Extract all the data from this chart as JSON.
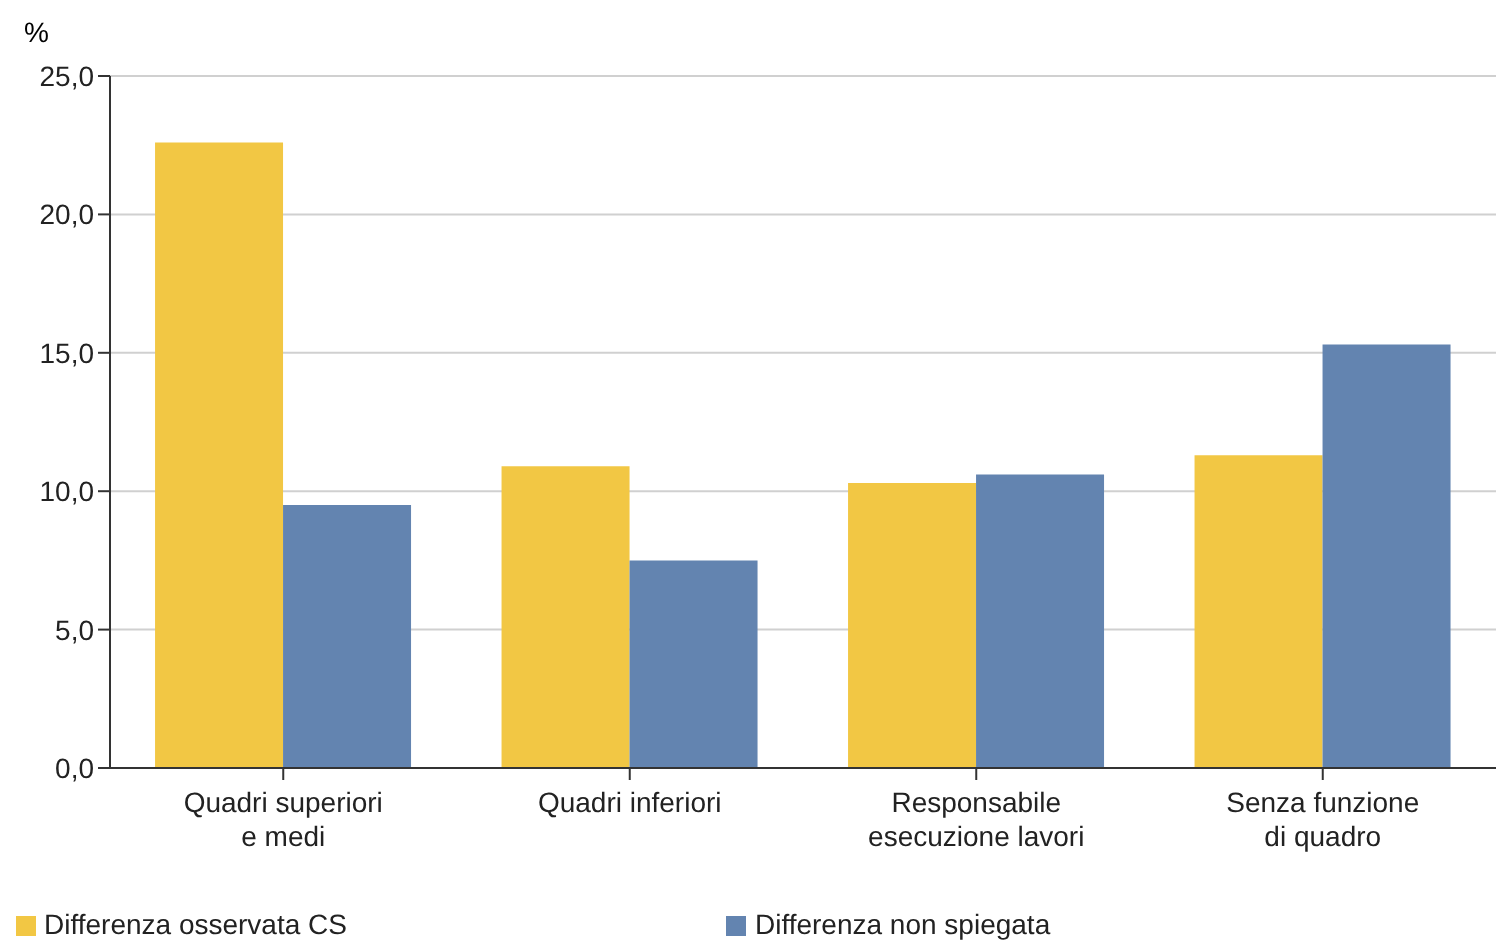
{
  "chart_data": {
    "type": "bar",
    "ylabel": "%",
    "categories": [
      "Quadri superiori\ne medi",
      "Quadri inferiori",
      "Responsabile\nesecuzione lavori",
      "Senza funzione\ndi quadro"
    ],
    "series": [
      {
        "name": "Differenza osservata CS",
        "color": "#f2c744",
        "values": [
          22.6,
          10.9,
          10.3,
          11.3
        ]
      },
      {
        "name": "Differenza non spiegata",
        "color": "#6384b0",
        "values": [
          9.5,
          7.5,
          10.6,
          15.3
        ]
      }
    ],
    "ylim": [
      0,
      25
    ],
    "yticks": [
      {
        "value": 0,
        "label": "0,0"
      },
      {
        "value": 5,
        "label": "5,0"
      },
      {
        "value": 10,
        "label": "10,0"
      },
      {
        "value": 15,
        "label": "15,0"
      },
      {
        "value": 20,
        "label": "20,0"
      },
      {
        "value": 25,
        "label": "25,0"
      }
    ],
    "grid": "y",
    "legend": "bottom left"
  }
}
